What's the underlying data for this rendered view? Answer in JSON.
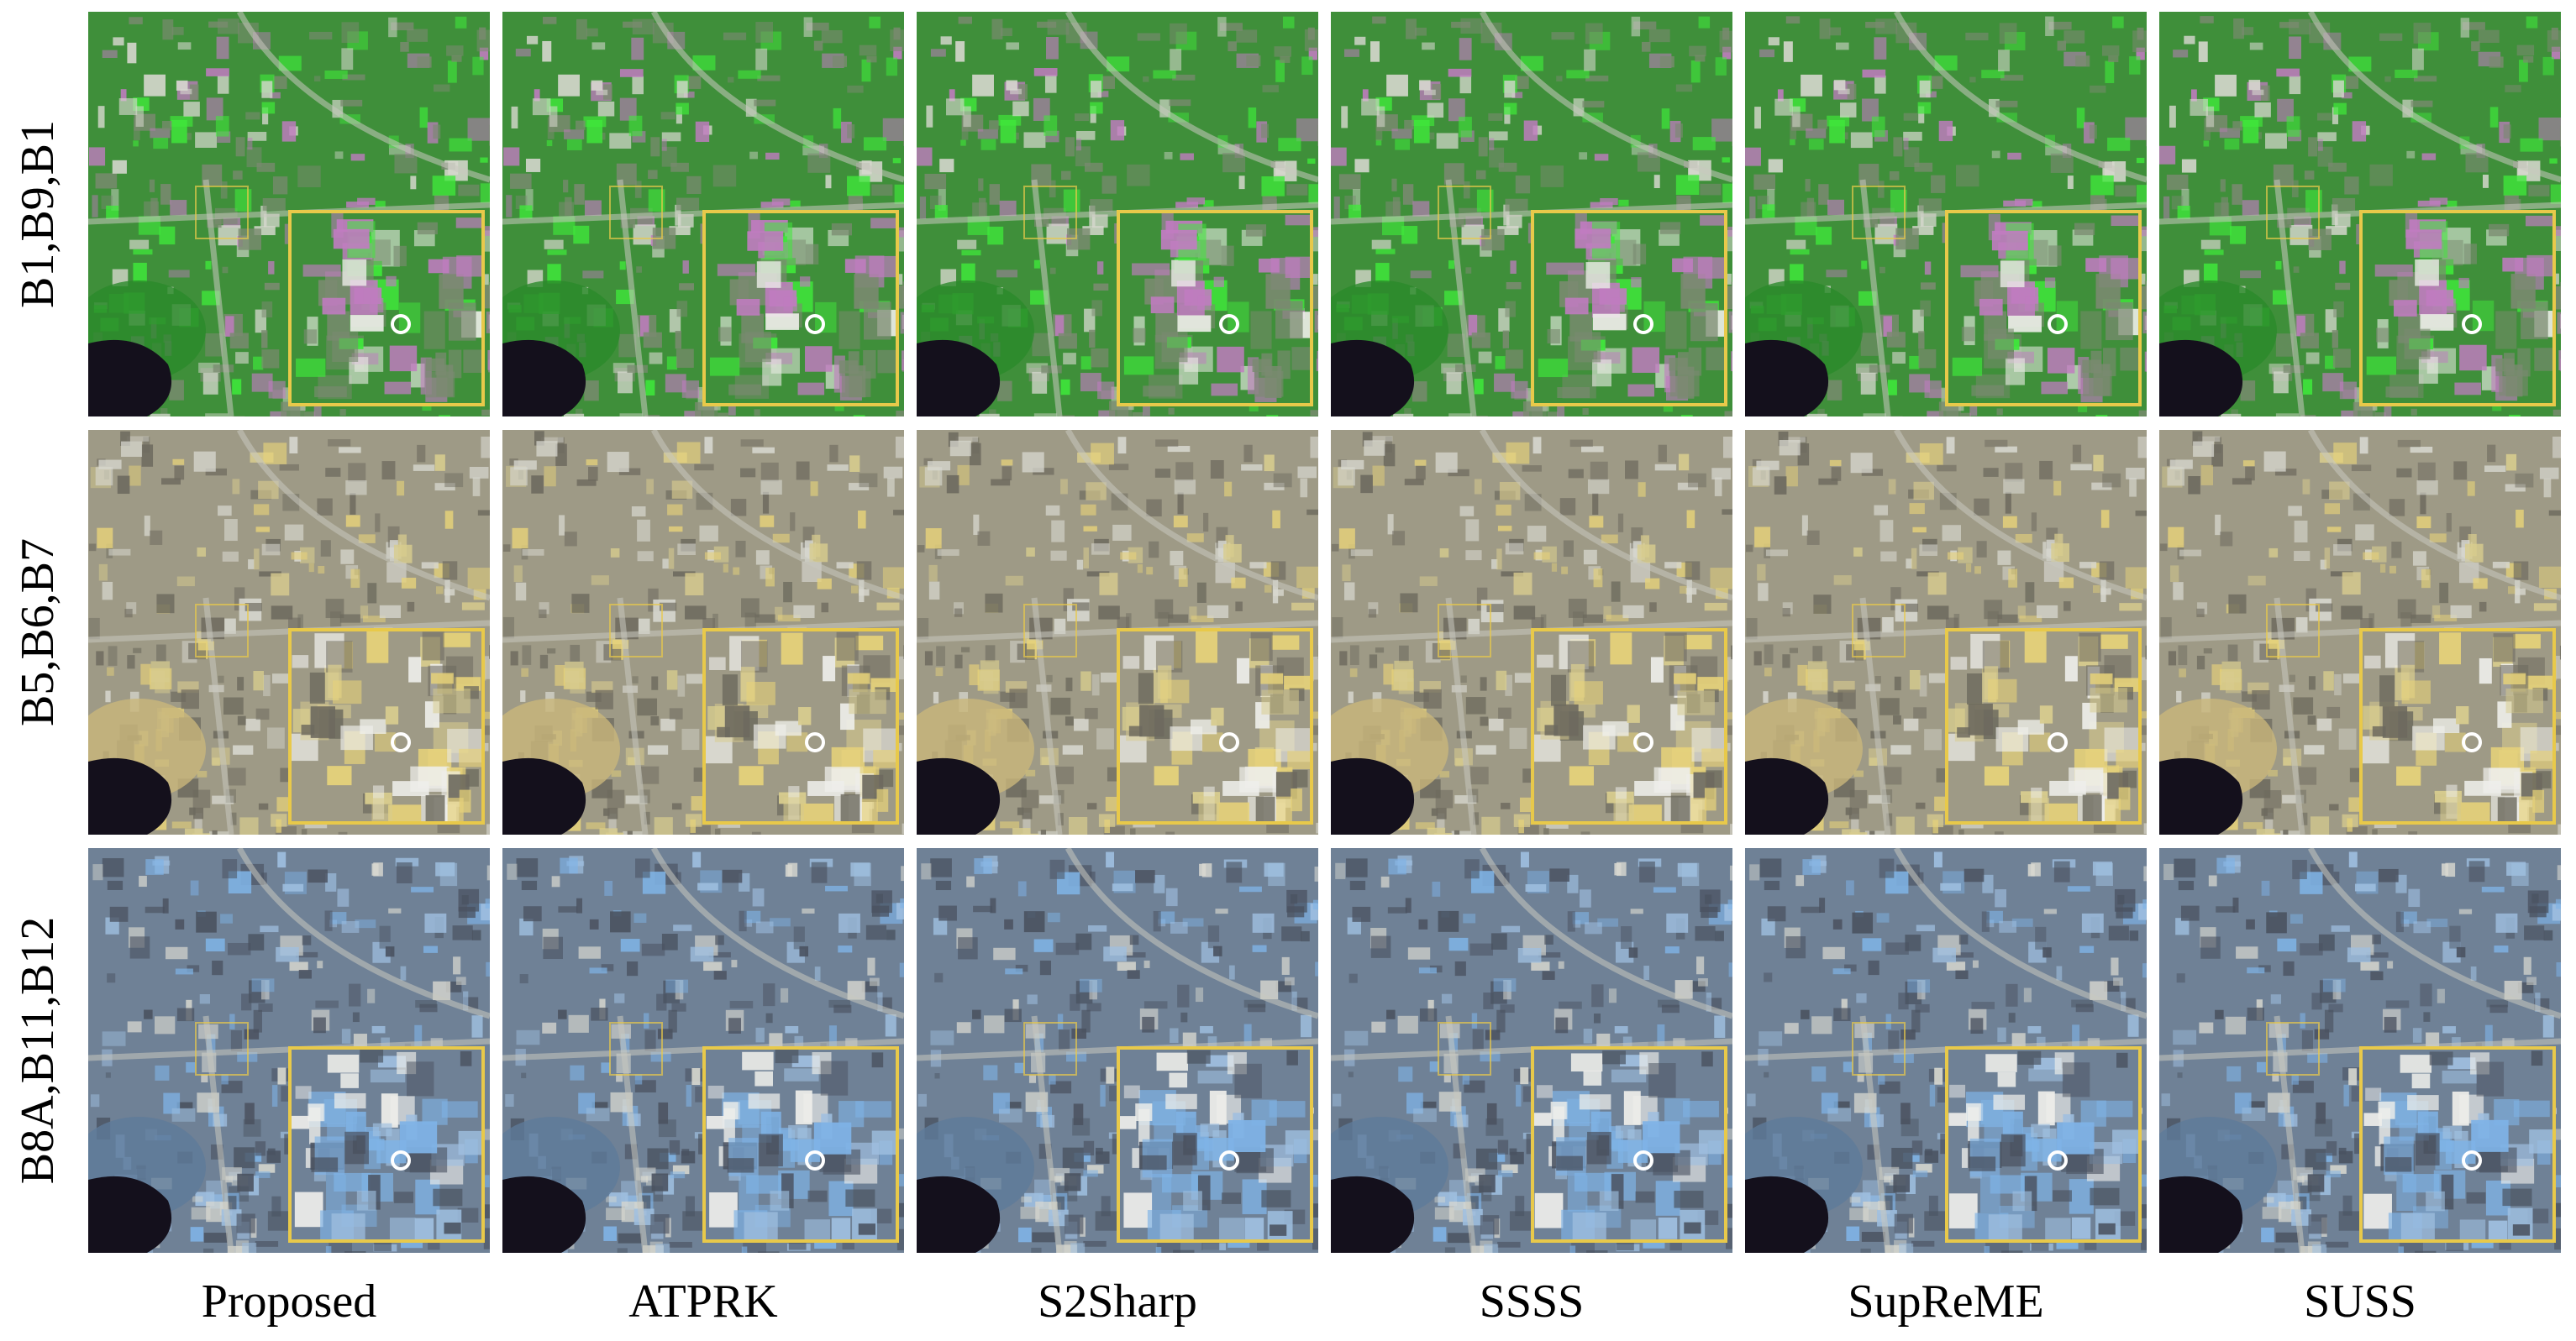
{
  "row_labels": [
    "B1,B9,B1",
    "B5,B6,B7",
    "B8A,B11,B12"
  ],
  "column_labels": [
    "Proposed",
    "ATPRK",
    "S2Sharp",
    "SSSS",
    "SupReME",
    "SUSS"
  ],
  "colors": {
    "inset_border": "#e8c94a",
    "row1_base": "#3f8f3a",
    "row1_vivid": "#3fe83a",
    "row1_accent": "#c07cc0",
    "row2_base": "#9e9a86",
    "row2_accent": "#e6d27a",
    "row3_base": "#6f8196",
    "row3_accent": "#7fb3e6",
    "lake": "#14101c"
  }
}
